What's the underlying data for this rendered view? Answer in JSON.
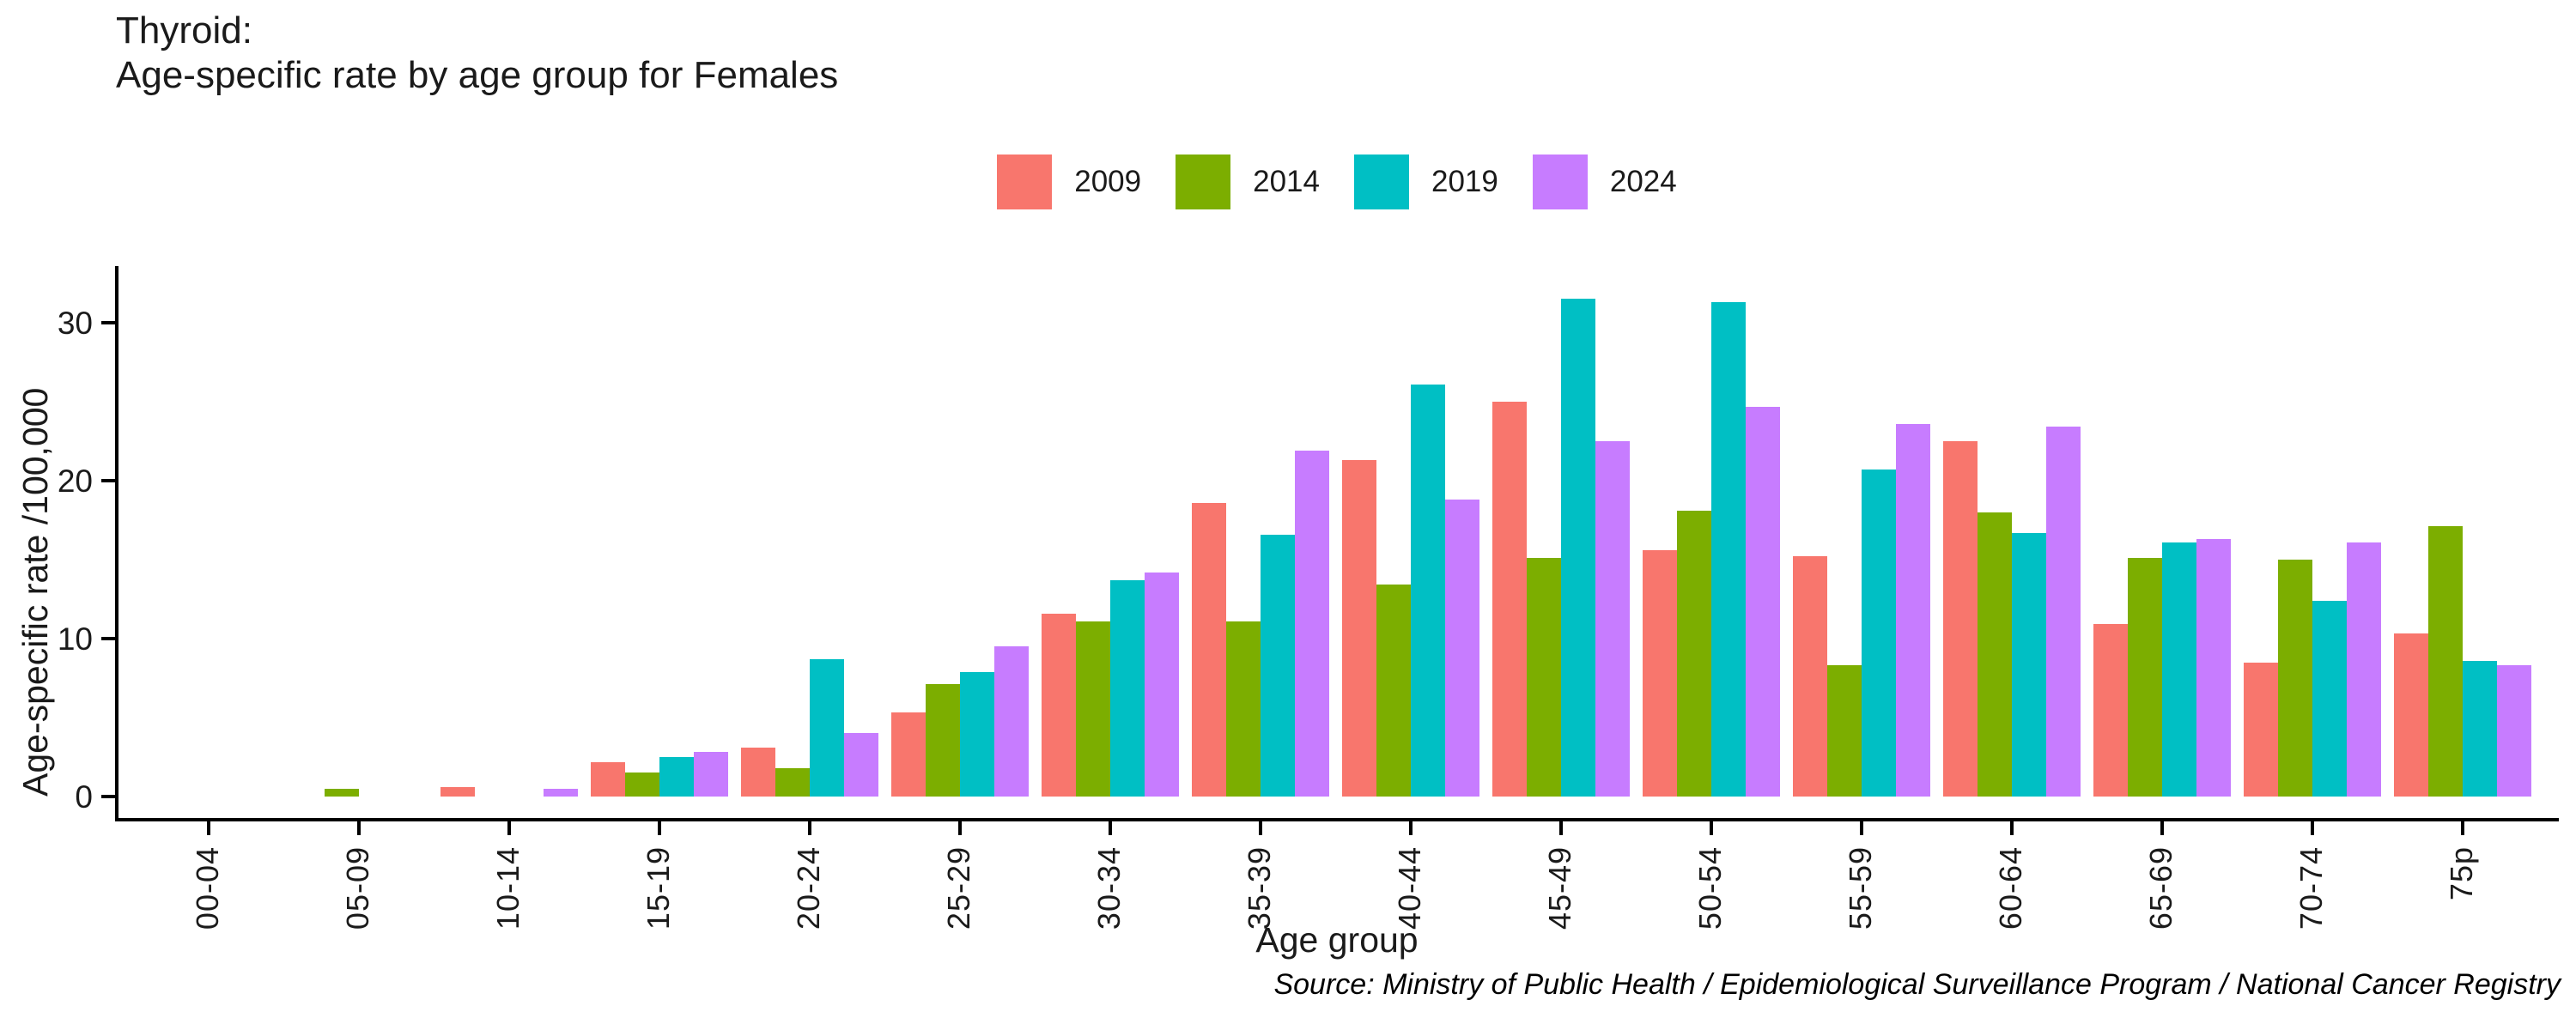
{
  "title": {
    "line1": "Thyroid:",
    "line2": "Age-specific rate by age group for Females"
  },
  "source": "Source: Ministry of Public Health / Epidemiological Surveillance Program / National Cancer Registry",
  "colors": {
    "y2009": "#F8766D",
    "y2014": "#7CAE00",
    "y2019": "#00BFC4",
    "y2024": "#C77CFF",
    "axis": "#000000"
  },
  "chart_data": {
    "type": "bar",
    "title": "Thyroid: Age-specific rate by age group for Females",
    "xlabel": "Age group",
    "ylabel": "Age-specific rate /100,000",
    "categories": [
      "00-04",
      "05-09",
      "10-14",
      "15-19",
      "20-24",
      "25-29",
      "30-34",
      "35-39",
      "40-44",
      "45-49",
      "50-54",
      "55-59",
      "60-64",
      "65-69",
      "70-74",
      "75p"
    ],
    "series": [
      {
        "name": "2009",
        "color": "#F8766D",
        "values": [
          0,
          0,
          0.6,
          2.2,
          3.1,
          5.3,
          11.6,
          18.6,
          21.3,
          25.0,
          15.6,
          15.2,
          22.5,
          10.9,
          8.5,
          10.3
        ]
      },
      {
        "name": "2014",
        "color": "#7CAE00",
        "values": [
          0,
          0.5,
          0,
          1.5,
          1.8,
          7.1,
          11.1,
          11.1,
          13.4,
          15.1,
          18.1,
          8.3,
          18.0,
          15.1,
          15.0,
          17.1
        ]
      },
      {
        "name": "2019",
        "color": "#00BFC4",
        "values": [
          0,
          0,
          0,
          2.5,
          8.7,
          7.9,
          13.7,
          16.6,
          26.1,
          31.5,
          31.3,
          20.7,
          16.7,
          16.1,
          12.4,
          8.6
        ]
      },
      {
        "name": "2024",
        "color": "#C77CFF",
        "values": [
          0,
          0,
          0.5,
          2.8,
          4.0,
          9.5,
          14.2,
          21.9,
          18.8,
          22.5,
          24.7,
          23.6,
          23.4,
          16.3,
          16.1,
          8.3
        ]
      }
    ],
    "y_ticks": [
      0,
      10,
      20,
      30
    ],
    "ylim": [
      0,
      31.5
    ],
    "legend_position": "top-center",
    "legend_labels": [
      "2009",
      "2014",
      "2019",
      "2024"
    ],
    "grid": false
  }
}
